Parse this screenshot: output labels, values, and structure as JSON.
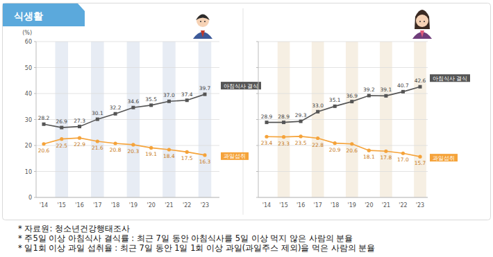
{
  "header": {
    "title": "식생활"
  },
  "chart_data": [
    {
      "type": "line",
      "categories": [
        "'14",
        "'15",
        "'16",
        "'17",
        "'18",
        "'19",
        "'20",
        "'21",
        "'22",
        "'23"
      ],
      "series": [
        {
          "name": "아침식사 결식",
          "color": "#555555",
          "marker": "square",
          "values": [
            28.2,
            26.9,
            27.3,
            30.1,
            32.2,
            34.6,
            35.5,
            37.0,
            37.4,
            39.7
          ]
        },
        {
          "name": "과일섭취",
          "color": "#f5a33a",
          "marker": "circle",
          "values": [
            20.6,
            22.5,
            22.9,
            21.6,
            20.8,
            20.3,
            19.1,
            18.4,
            17.5,
            16.3
          ]
        }
      ],
      "y_label": "(%)",
      "ylim": [
        0,
        60
      ],
      "yticks": [
        0,
        10,
        20,
        30,
        40,
        50,
        60
      ],
      "grid": true,
      "data_labels": true
    },
    {
      "type": "line",
      "categories": [
        "'14",
        "'15",
        "'16",
        "'17",
        "'18",
        "'19",
        "'20",
        "'21",
        "'22",
        "'23"
      ],
      "series": [
        {
          "name": "아침식사 결식",
          "color": "#555555",
          "marker": "square",
          "values": [
            28.9,
            28.9,
            29.3,
            33.0,
            35.1,
            36.9,
            39.2,
            39.1,
            40.7,
            42.6
          ]
        },
        {
          "name": "과일섭취",
          "color": "#f5a33a",
          "marker": "circle",
          "values": [
            23.4,
            23.3,
            23.5,
            22.8,
            20.9,
            20.6,
            18.1,
            17.8,
            17.0,
            15.7
          ]
        }
      ],
      "ylim": [
        0,
        60
      ],
      "yticks": [
        0,
        10,
        20,
        30,
        40,
        50,
        60
      ],
      "grid": true,
      "data_labels": true,
      "tick_labels": "x"
    }
  ],
  "notes": [
    "* 자료원: 청소년건강행태조사",
    "* 주5일 이상 아침식사 결식률 : 최근 7일 동안 아침식사를 5일 이상 먹지 않은 사람의 분율",
    "* 일1회 이상 과일 섭취율 : 최근 7일 동안 1일 1회 이상 과일(과일주스 제외)을 먹은 사람의 분율"
  ]
}
